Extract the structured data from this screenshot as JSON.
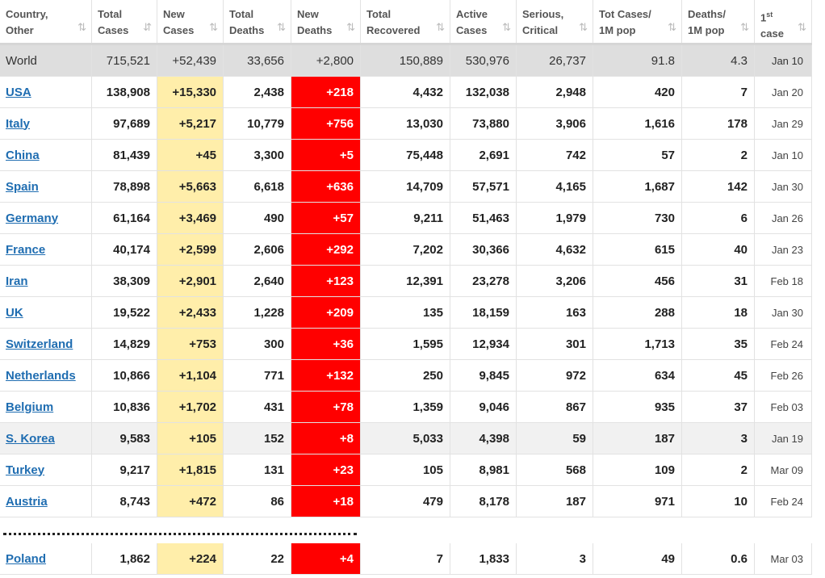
{
  "headers": [
    {
      "l1": "Country,",
      "l2": "Other"
    },
    {
      "l1": "Total",
      "l2": "Cases"
    },
    {
      "l1": "New",
      "l2": "Cases"
    },
    {
      "l1": "Total",
      "l2": "Deaths"
    },
    {
      "l1": "New",
      "l2": "Deaths"
    },
    {
      "l1": "Total",
      "l2": "Recovered"
    },
    {
      "l1": "Active",
      "l2": "Cases"
    },
    {
      "l1": "Serious,",
      "l2": "Critical"
    },
    {
      "l1": "Tot Cases/",
      "l2": "1M pop"
    },
    {
      "l1": "Deaths/",
      "l2": "1M pop"
    },
    {
      "l1": "1",
      "l1sup": "st",
      "l2": "case"
    }
  ],
  "sort_icon": "⇅",
  "sort_icon_active": "⇵",
  "world": [
    "World",
    "715,521",
    "+52,439",
    "33,656",
    "+2,800",
    "150,889",
    "530,976",
    "26,737",
    "91.8",
    "4.3",
    "Jan 10"
  ],
  "rows": [
    [
      "USA",
      "138,908",
      "+15,330",
      "2,438",
      "+218",
      "4,432",
      "132,038",
      "2,948",
      "420",
      "7",
      "Jan 20"
    ],
    [
      "Italy",
      "97,689",
      "+5,217",
      "10,779",
      "+756",
      "13,030",
      "73,880",
      "3,906",
      "1,616",
      "178",
      "Jan 29"
    ],
    [
      "China",
      "81,439",
      "+45",
      "3,300",
      "+5",
      "75,448",
      "2,691",
      "742",
      "57",
      "2",
      "Jan 10"
    ],
    [
      "Spain",
      "78,898",
      "+5,663",
      "6,618",
      "+636",
      "14,709",
      "57,571",
      "4,165",
      "1,687",
      "142",
      "Jan 30"
    ],
    [
      "Germany",
      "61,164",
      "+3,469",
      "490",
      "+57",
      "9,211",
      "51,463",
      "1,979",
      "730",
      "6",
      "Jan 26"
    ],
    [
      "France",
      "40,174",
      "+2,599",
      "2,606",
      "+292",
      "7,202",
      "30,366",
      "4,632",
      "615",
      "40",
      "Jan 23"
    ],
    [
      "Iran",
      "38,309",
      "+2,901",
      "2,640",
      "+123",
      "12,391",
      "23,278",
      "3,206",
      "456",
      "31",
      "Feb 18"
    ],
    [
      "UK",
      "19,522",
      "+2,433",
      "1,228",
      "+209",
      "135",
      "18,159",
      "163",
      "288",
      "18",
      "Jan 30"
    ],
    [
      "Switzerland",
      "14,829",
      "+753",
      "300",
      "+36",
      "1,595",
      "12,934",
      "301",
      "1,713",
      "35",
      "Feb 24"
    ],
    [
      "Netherlands",
      "10,866",
      "+1,104",
      "771",
      "+132",
      "250",
      "9,845",
      "972",
      "634",
      "45",
      "Feb 26"
    ],
    [
      "Belgium",
      "10,836",
      "+1,702",
      "431",
      "+78",
      "1,359",
      "9,046",
      "867",
      "935",
      "37",
      "Feb 03"
    ],
    [
      "S. Korea",
      "9,583",
      "+105",
      "152",
      "+8",
      "5,033",
      "4,398",
      "59",
      "187",
      "3",
      "Jan 19"
    ],
    [
      "Turkey",
      "9,217",
      "+1,815",
      "131",
      "+23",
      "105",
      "8,981",
      "568",
      "109",
      "2",
      "Mar 09"
    ],
    [
      "Austria",
      "8,743",
      "+472",
      "86",
      "+18",
      "479",
      "8,178",
      "187",
      "971",
      "10",
      "Feb 24"
    ]
  ],
  "poland": [
    "Poland",
    "1,862",
    "+224",
    "22",
    "+4",
    "7",
    "1,833",
    "3",
    "49",
    "0.6",
    "Mar 03"
  ]
}
